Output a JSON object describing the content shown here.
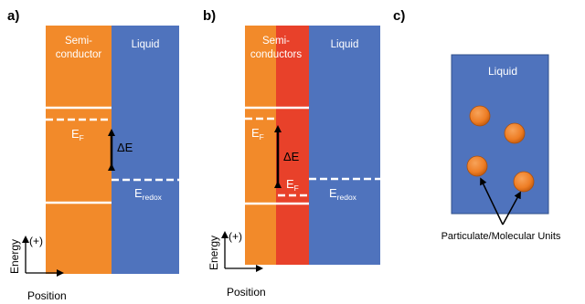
{
  "panels": {
    "a": {
      "label": "a)",
      "semiconductor_line1": "Semi-",
      "semiconductor_line2": "conductor",
      "liquid": "Liquid",
      "fermi_level": "E",
      "fermi_sub": "F",
      "delta_e": "ΔE",
      "redox_level": "E",
      "redox_sub": "redox"
    },
    "b": {
      "label": "b)",
      "semiconductor_line1": "Semi-",
      "semiconductor_line2": "conductors",
      "liquid": "Liquid",
      "fermi_level_1": "E",
      "fermi_sub_1": "F",
      "fermi_level_2": "E",
      "fermi_sub_2": "F",
      "delta_e": "ΔE",
      "redox_level": "E",
      "redox_sub": "redox"
    },
    "c": {
      "label": "c)",
      "liquid": "Liquid",
      "particle_caption": "Particulate/Molecular Units"
    }
  },
  "axes": {
    "energy_label": "Energy",
    "positive_marker": "(+)",
    "position_label": "Position"
  },
  "colors": {
    "orange": "#f28a2a",
    "red": "#e8412a",
    "blue": "#4f73bd",
    "panel_edge": "#2f4f8a",
    "particle": "#ee7d24"
  }
}
